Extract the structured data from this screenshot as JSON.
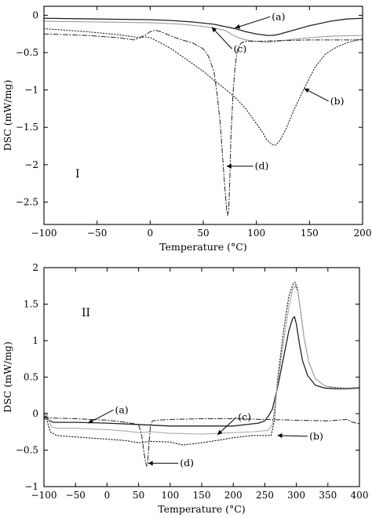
{
  "chart_data": [
    {
      "type": "line",
      "panel_label": "I",
      "xlabel": "Temperature (°C)",
      "ylabel": "DSC (mW/mg)",
      "xlim": [
        -100,
        200
      ],
      "ylim": [
        -2.8,
        0.12
      ],
      "xticks": [
        -100,
        -50,
        0,
        50,
        100,
        150,
        200
      ],
      "yticks": [
        0,
        -0.5,
        -1,
        -1.5,
        -2,
        -2.5
      ],
      "xtick_labels": [
        "−100",
        "−50",
        "0",
        "50",
        "100",
        "150",
        "200"
      ],
      "ytick_labels": [
        "0",
        "−0.5",
        "−1",
        "−1.5",
        "−2",
        "−2.5"
      ],
      "series": [
        {
          "name": "(a)",
          "style": "solid",
          "color": "#222222",
          "width": 1.3,
          "x": [
            -100,
            -50,
            0,
            20,
            40,
            60,
            70,
            80,
            90,
            100,
            110,
            115,
            120,
            130,
            140,
            150,
            170,
            185,
            200
          ],
          "y": [
            -0.04,
            -0.05,
            -0.06,
            -0.07,
            -0.09,
            -0.12,
            -0.15,
            -0.18,
            -0.22,
            -0.25,
            -0.27,
            -0.27,
            -0.26,
            -0.22,
            -0.18,
            -0.14,
            -0.08,
            -0.05,
            -0.04
          ]
        },
        {
          "name": "(b)",
          "style": "dotted",
          "color": "#333333",
          "width": 1.2,
          "x": [
            -100,
            -60,
            -30,
            -10,
            -5,
            0,
            10,
            20,
            30,
            40,
            50,
            60,
            70,
            80,
            90,
            100,
            105,
            110,
            115,
            118,
            122,
            128,
            135,
            145,
            155,
            165,
            175,
            185,
            195,
            200
          ],
          "y": [
            -0.18,
            -0.22,
            -0.26,
            -0.3,
            -0.29,
            -0.3,
            -0.37,
            -0.45,
            -0.55,
            -0.65,
            -0.75,
            -0.87,
            -0.98,
            -1.1,
            -1.25,
            -1.45,
            -1.55,
            -1.67,
            -1.73,
            -1.74,
            -1.68,
            -1.52,
            -1.28,
            -0.98,
            -0.7,
            -0.52,
            -0.43,
            -0.37,
            -0.33,
            -0.32
          ]
        },
        {
          "name": "(c)",
          "style": "solid",
          "color": "#9a9a9a",
          "width": 1.1,
          "x": [
            -100,
            -50,
            0,
            30,
            50,
            60,
            70,
            75,
            80,
            85,
            90,
            100,
            110,
            120,
            130,
            150,
            170,
            200
          ],
          "y": [
            -0.08,
            -0.09,
            -0.1,
            -0.12,
            -0.15,
            -0.17,
            -0.2,
            -0.24,
            -0.28,
            -0.31,
            -0.33,
            -0.35,
            -0.36,
            -0.35,
            -0.33,
            -0.3,
            -0.28,
            -0.27
          ]
        },
        {
          "name": "(d)",
          "style": "dashdot",
          "color": "#222222",
          "width": 1.0,
          "x": [
            -100,
            -60,
            -30,
            -15,
            -5,
            0,
            5,
            10,
            20,
            30,
            40,
            50,
            55,
            60,
            63,
            66,
            68,
            70,
            72,
            73,
            74,
            75,
            76,
            78,
            80,
            82,
            84,
            86,
            90,
            100,
            120,
            150,
            200
          ],
          "y": [
            -0.25,
            -0.27,
            -0.3,
            -0.33,
            -0.27,
            -0.22,
            -0.2,
            -0.22,
            -0.28,
            -0.33,
            -0.37,
            -0.45,
            -0.55,
            -0.75,
            -1.05,
            -1.45,
            -1.85,
            -2.25,
            -2.6,
            -2.68,
            -2.6,
            -2.2,
            -1.65,
            -1.05,
            -0.68,
            -0.48,
            -0.4,
            -0.37,
            -0.35,
            -0.35,
            -0.34,
            -0.33,
            -0.33
          ]
        }
      ],
      "annotations": [
        {
          "text": "(a)",
          "tip": [
            80,
            -0.17
          ],
          "label": [
            113,
            -0.02
          ]
        },
        {
          "text": "(b)",
          "tip": [
            145,
            -0.98
          ],
          "label": [
            168,
            -1.15
          ]
        },
        {
          "text": "(c)",
          "tip": [
            58,
            -0.16
          ],
          "label": [
            77,
            -0.45
          ]
        },
        {
          "text": "(d)",
          "tip": [
            72,
            -2.02
          ],
          "label": [
            97,
            -2.02
          ]
        }
      ]
    },
    {
      "type": "line",
      "panel_label": "II",
      "xlabel": "Temperature (°C)",
      "ylabel": "DSC (mW/mg)",
      "xlim": [
        -100,
        400
      ],
      "ylim": [
        -1,
        2
      ],
      "xticks": [
        -100,
        -50,
        0,
        50,
        100,
        150,
        200,
        250,
        300,
        350,
        400
      ],
      "yticks": [
        2,
        1.5,
        1,
        0.5,
        0,
        -0.5,
        -1
      ],
      "xtick_labels": [
        "−100",
        "−50",
        "0",
        "50",
        "100",
        "150",
        "200",
        "250",
        "300",
        "350",
        "400"
      ],
      "ytick_labels": [
        "2",
        "1.5",
        "1",
        "0.5",
        "0",
        "−0.5",
        "−1"
      ],
      "series": [
        {
          "name": "(a)",
          "style": "solid",
          "color": "#222222",
          "width": 1.3,
          "x": [
            -100,
            -97,
            -94,
            -90,
            -85,
            -50,
            0,
            50,
            100,
            150,
            200,
            240,
            250,
            256,
            262,
            270,
            280,
            288,
            294,
            297,
            300,
            305,
            310,
            318,
            330,
            345,
            360,
            380,
            400
          ],
          "y": [
            -0.08,
            -0.03,
            -0.08,
            -0.1,
            -0.12,
            -0.12,
            -0.13,
            -0.15,
            -0.17,
            -0.17,
            -0.17,
            -0.13,
            -0.1,
            -0.03,
            0.06,
            0.35,
            0.78,
            1.13,
            1.3,
            1.33,
            1.23,
            0.95,
            0.72,
            0.52,
            0.39,
            0.35,
            0.34,
            0.34,
            0.35
          ]
        },
        {
          "name": "(b)",
          "style": "dotted",
          "color": "#222222",
          "width": 1.2,
          "x": [
            -100,
            -95,
            -90,
            -80,
            -50,
            0,
            30,
            50,
            70,
            100,
            120,
            150,
            180,
            200,
            230,
            250,
            260,
            265,
            270,
            280,
            288,
            295,
            298,
            302,
            306,
            312,
            320,
            330,
            345,
            360,
            380,
            400
          ],
          "y": [
            -0.04,
            -0.1,
            -0.25,
            -0.3,
            -0.32,
            -0.35,
            -0.37,
            -0.4,
            -0.38,
            -0.39,
            -0.43,
            -0.4,
            -0.36,
            -0.33,
            -0.3,
            -0.3,
            -0.3,
            -0.1,
            0.45,
            1.15,
            1.6,
            1.78,
            1.8,
            1.7,
            1.45,
            1.05,
            0.7,
            0.48,
            0.38,
            0.36,
            0.35,
            0.36
          ]
        },
        {
          "name": "(c)",
          "style": "solid",
          "color": "#aaaaaa",
          "width": 1.1,
          "x": [
            -100,
            -96,
            -92,
            -88,
            -80,
            -50,
            0,
            30,
            50,
            70,
            100,
            150,
            200,
            230,
            255,
            262,
            266,
            270,
            280,
            288,
            294,
            298,
            302,
            307,
            313,
            320,
            330,
            345,
            360,
            380,
            400
          ],
          "y": [
            -0.03,
            0.02,
            -0.1,
            -0.18,
            -0.2,
            -0.2,
            -0.22,
            -0.24,
            -0.26,
            -0.25,
            -0.27,
            -0.28,
            -0.26,
            -0.25,
            -0.23,
            -0.15,
            0.1,
            0.4,
            1.0,
            1.45,
            1.7,
            1.75,
            1.68,
            1.4,
            1.0,
            0.7,
            0.48,
            0.38,
            0.35,
            0.35,
            0.36
          ]
        },
        {
          "name": "(d)",
          "style": "dashdot",
          "color": "#222222",
          "width": 1.0,
          "x": [
            -100,
            -90,
            -50,
            0,
            30,
            50,
            55,
            58,
            61,
            63,
            65,
            67,
            69,
            72,
            80,
            100,
            150,
            200,
            250,
            300,
            350,
            380,
            390,
            400
          ],
          "y": [
            -0.05,
            -0.06,
            -0.07,
            -0.09,
            -0.12,
            -0.15,
            -0.3,
            -0.5,
            -0.67,
            -0.72,
            -0.6,
            -0.35,
            -0.15,
            -0.1,
            -0.09,
            -0.08,
            -0.07,
            -0.07,
            -0.08,
            -0.09,
            -0.1,
            -0.08,
            -0.12,
            -0.14
          ]
        }
      ],
      "annotations": [
        {
          "text": "(a)",
          "tip": [
            -30,
            -0.13
          ],
          "label": [
            10,
            0.05
          ]
        },
        {
          "text": "(b)",
          "tip": [
            270,
            -0.3
          ],
          "label": [
            318,
            -0.31
          ]
        },
        {
          "text": "(c)",
          "tip": [
            175,
            -0.29
          ],
          "label": [
            205,
            -0.05
          ]
        },
        {
          "text": "(d)",
          "tip": [
            65,
            -0.68
          ],
          "label": [
            113,
            -0.68
          ]
        }
      ]
    }
  ]
}
